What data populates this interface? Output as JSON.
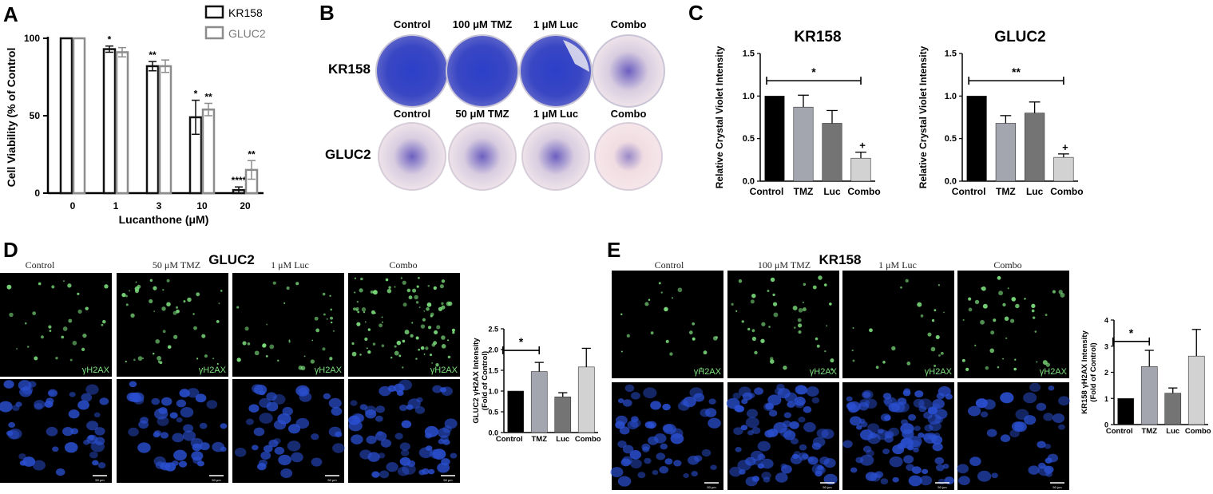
{
  "panel_labels": {
    "a": "A",
    "b": "B",
    "c": "C",
    "d": "D",
    "e": "E"
  },
  "colors": {
    "kr158": "#111111",
    "gluc2": "#8c8c8c",
    "control": "#000000",
    "tmz": "#a3a6ae",
    "luc": "#747474",
    "combo": "#d2d2d2",
    "green": "#7ee07e",
    "blue_nuclei": "#2a4fd0"
  },
  "panel_b": {
    "columns_kr158": [
      "Control",
      "100 μM TMZ",
      "1 μM Luc",
      "Combo"
    ],
    "columns_gluc2": [
      "Control",
      "50 μM TMZ",
      "1 μM Luc",
      "Combo"
    ],
    "row_labels": [
      "KR158",
      "GLUC2"
    ]
  },
  "panel_d": {
    "title": "GLUC2",
    "columns": [
      "Control",
      "50 μM TMZ",
      "1 μM Luc",
      "Combo"
    ],
    "stain_label": "γH2AX",
    "scale_label": "50 μm"
  },
  "panel_e": {
    "title": "KR158",
    "columns": [
      "Control",
      "100 μM TMZ",
      "1 μM Luc",
      "Combo"
    ],
    "stain_label": "γH2AX",
    "scale_label": "50 μm"
  },
  "chart_data": [
    {
      "id": "A",
      "type": "bar",
      "title": "",
      "xlabel": "Lucanthone (μM)",
      "ylabel": "Cell Viability (% of Control",
      "categories": [
        "0",
        "1",
        "3",
        "10",
        "20"
      ],
      "ylim": [
        0,
        100
      ],
      "yticks": [
        "0",
        "50",
        "100"
      ],
      "legend_position": "top-right",
      "series": [
        {
          "name": "KR158",
          "values": [
            100,
            93,
            82,
            49,
            2
          ],
          "errors": [
            0,
            2,
            3,
            11,
            2
          ],
          "sig": [
            "",
            "*",
            "**",
            "*",
            "****"
          ]
        },
        {
          "name": "GLUC2",
          "values": [
            100,
            91,
            82,
            54,
            15
          ],
          "errors": [
            0,
            3,
            4,
            4,
            6
          ],
          "sig": [
            "",
            "",
            "",
            "**",
            "**"
          ]
        }
      ]
    },
    {
      "id": "C1",
      "type": "bar",
      "title": "KR158",
      "xlabel": "",
      "ylabel": "Relative Crystal Violet Intensity",
      "categories": [
        "Control",
        "TMZ",
        "Luc",
        "Combo"
      ],
      "ylim": [
        0,
        1.5
      ],
      "yticks": [
        "0.0",
        "0.5",
        "1.0",
        "1.5"
      ],
      "values": [
        1.0,
        0.87,
        0.68,
        0.27
      ],
      "errors": [
        0,
        0.14,
        0.15,
        0.07
      ],
      "bracket_sig": "*",
      "bar_marks": [
        "",
        "",
        "",
        "+"
      ]
    },
    {
      "id": "C2",
      "type": "bar",
      "title": "GLUC2",
      "xlabel": "",
      "ylabel": "Relative Crystal Violet Intensity",
      "categories": [
        "Control",
        "TMZ",
        "Luc",
        "Combo"
      ],
      "ylim": [
        0,
        1.5
      ],
      "yticks": [
        "0.0",
        "0.5",
        "1.0",
        "1.5"
      ],
      "values": [
        1.0,
        0.68,
        0.8,
        0.28
      ],
      "errors": [
        0,
        0.09,
        0.13,
        0.04
      ],
      "bracket_sig": "**",
      "bar_marks": [
        "",
        "",
        "",
        "+"
      ]
    },
    {
      "id": "D",
      "type": "bar",
      "title": "",
      "xlabel": "",
      "ylabel": "GLUC2 γH2AX Intensity",
      "ylabel2": "(Fold of Control)",
      "categories": [
        "Control",
        "TMZ",
        "Luc",
        "Combo"
      ],
      "ylim": [
        0,
        2.5
      ],
      "yticks": [
        "0.0",
        "0.5",
        "1.0",
        "1.5",
        "2.0",
        "2.5"
      ],
      "values": [
        1.0,
        1.47,
        0.86,
        1.58
      ],
      "errors": [
        0,
        0.22,
        0.1,
        0.45
      ],
      "bracket_sig": "*",
      "bar_marks": [
        "",
        "",
        "",
        ""
      ]
    },
    {
      "id": "E",
      "type": "bar",
      "title": "",
      "xlabel": "",
      "ylabel": "KR158 γH2AX Intensity",
      "ylabel2": "(Fold of Control)",
      "categories": [
        "Control",
        "TMZ",
        "Luc",
        "Combo"
      ],
      "ylim": [
        0,
        4
      ],
      "yticks": [
        "0",
        "1",
        "2",
        "3",
        "4"
      ],
      "values": [
        1.0,
        2.22,
        1.2,
        2.62
      ],
      "errors": [
        0,
        0.62,
        0.2,
        1.02
      ],
      "bracket_sig": "*",
      "bar_marks": [
        "",
        "",
        "",
        ""
      ]
    }
  ]
}
